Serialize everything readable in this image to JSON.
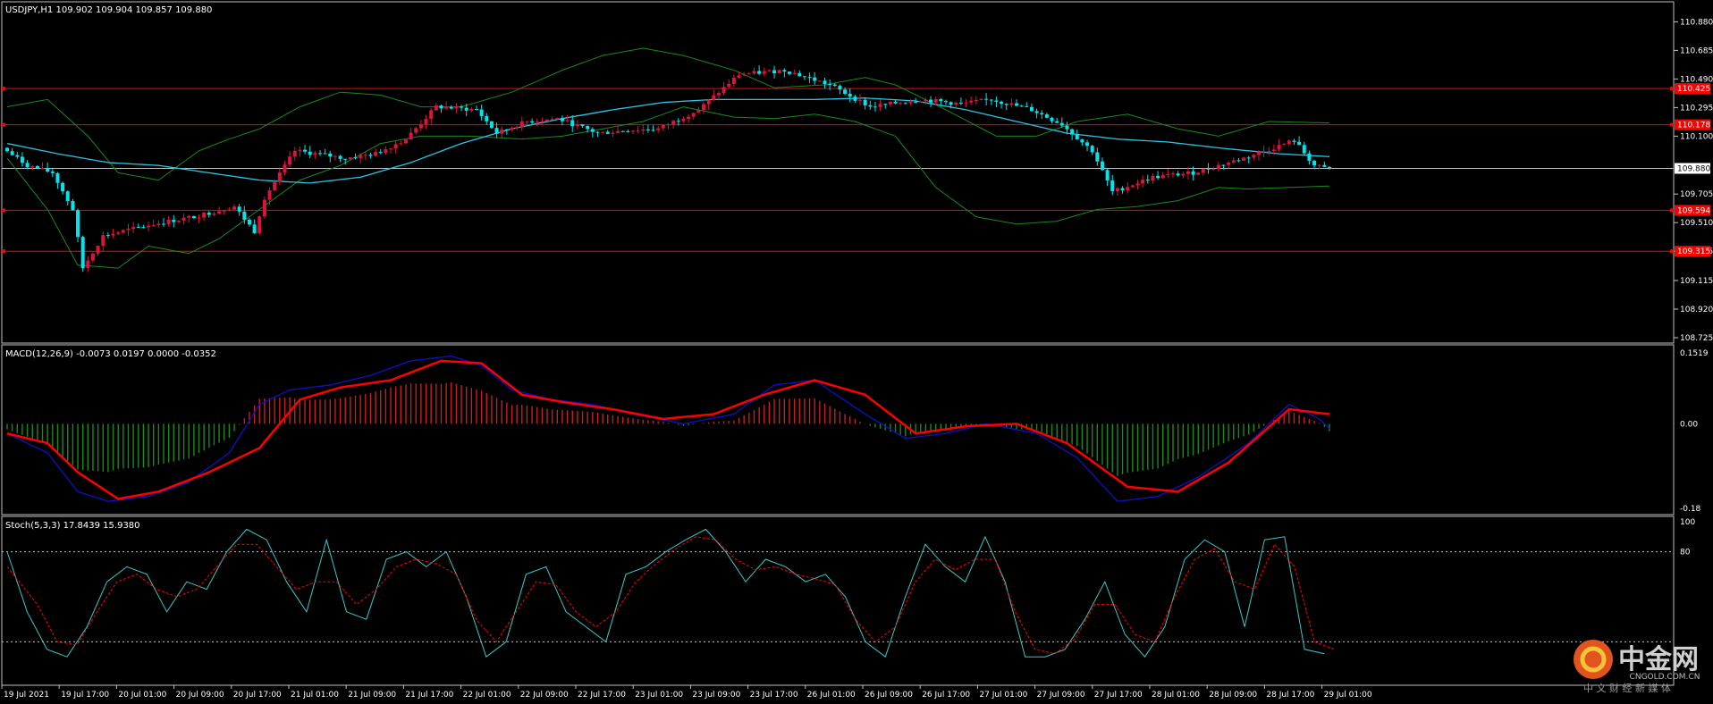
{
  "colors": {
    "background": "#000000",
    "frame": "#c0c0c0",
    "text": "#ffffff",
    "bull": "#dc143c",
    "bear": "#00e5ee",
    "ma": "#2ec4e0",
    "bands": "#1a8a1a",
    "level": "#ff0000",
    "macd_pos": "#c81e1e",
    "macd_neg": "#1a8a1a",
    "macd_main": "#1010c8",
    "macd_signal": "#ff0000",
    "stoch_main": "#3cc8c8",
    "stoch_signal": "#ff0000",
    "grid_dotted": "#c0c0c0"
  },
  "chart_data": [
    {
      "type": "candlestick",
      "title": "USDJPY,H1  109.902 109.904 109.857 109.880",
      "symbol": "USDJPY,H1",
      "ohlc_readout": [
        "109.902",
        "109.904",
        "109.857",
        "109.880"
      ],
      "ylim": [
        108.725,
        110.98
      ],
      "y_ticks": [
        "110.880",
        "110.685",
        "110.490",
        "110.295",
        "110.100",
        "109.705",
        "109.510",
        "109.315",
        "109.115",
        "108.920",
        "108.725"
      ],
      "current_price": "109.880",
      "levels": [
        {
          "label": "110.425",
          "value": 110.425
        },
        {
          "label": "110.178",
          "value": 110.178
        },
        {
          "label": "109.594",
          "value": 109.594
        },
        {
          "label": "109.315",
          "value": 109.315
        }
      ],
      "price_path": [
        [
          0,
          110.02
        ],
        [
          5,
          109.9
        ],
        [
          10,
          109.85
        ],
        [
          14,
          109.6
        ],
        [
          16,
          109.2
        ],
        [
          20,
          109.42
        ],
        [
          30,
          109.5
        ],
        [
          38,
          109.55
        ],
        [
          46,
          109.62
        ],
        [
          50,
          109.45
        ],
        [
          52,
          109.68
        ],
        [
          58,
          110.0
        ],
        [
          68,
          109.95
        ],
        [
          74,
          109.98
        ],
        [
          80,
          110.08
        ],
        [
          86,
          110.3
        ],
        [
          94,
          110.28
        ],
        [
          98,
          110.12
        ],
        [
          104,
          110.2
        ],
        [
          110,
          110.22
        ],
        [
          118,
          110.12
        ],
        [
          124,
          110.14
        ],
        [
          130,
          110.15
        ],
        [
          138,
          110.28
        ],
        [
          146,
          110.52
        ],
        [
          155,
          110.55
        ],
        [
          164,
          110.45
        ],
        [
          172,
          110.3
        ],
        [
          182,
          110.35
        ],
        [
          190,
          110.32
        ],
        [
          196,
          110.35
        ],
        [
          204,
          110.28
        ],
        [
          210,
          110.18
        ],
        [
          216,
          110.0
        ],
        [
          220,
          109.72
        ],
        [
          228,
          109.82
        ],
        [
          236,
          109.85
        ],
        [
          246,
          109.95
        ],
        [
          256,
          110.07
        ],
        [
          260,
          109.9
        ],
        [
          262,
          109.88
        ]
      ],
      "bb_upper": [
        [
          0,
          110.3
        ],
        [
          8,
          110.35
        ],
        [
          16,
          110.1
        ],
        [
          22,
          109.85
        ],
        [
          30,
          109.8
        ],
        [
          38,
          110.0
        ],
        [
          44,
          110.08
        ],
        [
          50,
          110.15
        ],
        [
          58,
          110.3
        ],
        [
          66,
          110.4
        ],
        [
          74,
          110.38
        ],
        [
          82,
          110.3
        ],
        [
          90,
          110.3
        ],
        [
          100,
          110.4
        ],
        [
          110,
          110.55
        ],
        [
          118,
          110.65
        ],
        [
          126,
          110.7
        ],
        [
          134,
          110.65
        ],
        [
          144,
          110.55
        ],
        [
          152,
          110.43
        ],
        [
          162,
          110.45
        ],
        [
          170,
          110.5
        ],
        [
          176,
          110.45
        ],
        [
          186,
          110.28
        ],
        [
          196,
          110.1
        ],
        [
          204,
          110.1
        ],
        [
          212,
          110.2
        ],
        [
          222,
          110.25
        ],
        [
          232,
          110.15
        ],
        [
          240,
          110.1
        ],
        [
          250,
          110.2
        ],
        [
          262,
          110.19
        ]
      ],
      "bb_lower": [
        [
          0,
          109.95
        ],
        [
          8,
          109.6
        ],
        [
          14,
          109.22
        ],
        [
          22,
          109.2
        ],
        [
          28,
          109.35
        ],
        [
          36,
          109.3
        ],
        [
          42,
          109.4
        ],
        [
          50,
          109.6
        ],
        [
          58,
          109.8
        ],
        [
          66,
          109.9
        ],
        [
          74,
          110.05
        ],
        [
          82,
          110.1
        ],
        [
          92,
          110.1
        ],
        [
          102,
          110.08
        ],
        [
          110,
          110.1
        ],
        [
          118,
          110.15
        ],
        [
          126,
          110.2
        ],
        [
          134,
          110.3
        ],
        [
          144,
          110.23
        ],
        [
          152,
          110.22
        ],
        [
          160,
          110.25
        ],
        [
          168,
          110.2
        ],
        [
          176,
          110.1
        ],
        [
          184,
          109.75
        ],
        [
          192,
          109.55
        ],
        [
          200,
          109.5
        ],
        [
          208,
          109.52
        ],
        [
          216,
          109.6
        ],
        [
          224,
          109.62
        ],
        [
          232,
          109.66
        ],
        [
          240,
          109.75
        ],
        [
          246,
          109.74
        ],
        [
          262,
          109.76
        ]
      ],
      "ma": [
        [
          0,
          110.05
        ],
        [
          10,
          109.98
        ],
        [
          20,
          109.92
        ],
        [
          30,
          109.9
        ],
        [
          40,
          109.85
        ],
        [
          50,
          109.8
        ],
        [
          60,
          109.78
        ],
        [
          70,
          109.82
        ],
        [
          80,
          109.92
        ],
        [
          90,
          110.05
        ],
        [
          100,
          110.15
        ],
        [
          110,
          110.22
        ],
        [
          120,
          110.28
        ],
        [
          130,
          110.33
        ],
        [
          140,
          110.35
        ],
        [
          150,
          110.35
        ],
        [
          160,
          110.35
        ],
        [
          170,
          110.36
        ],
        [
          180,
          110.34
        ],
        [
          190,
          110.28
        ],
        [
          200,
          110.2
        ],
        [
          210,
          110.12
        ],
        [
          220,
          110.08
        ],
        [
          230,
          110.06
        ],
        [
          240,
          110.02
        ],
        [
          252,
          109.98
        ],
        [
          262,
          109.96
        ]
      ],
      "x_ticks": [
        "19 Jul 2021",
        "19 Jul 17:00",
        "20 Jul 01:00",
        "20 Jul 09:00",
        "20 Jul 17:00",
        "21 Jul 01:00",
        "21 Jul 09:00",
        "21 Jul 17:00",
        "22 Jul 01:00",
        "22 Jul 09:00",
        "22 Jul 17:00",
        "23 Jul 01:00",
        "23 Jul 09:00",
        "23 Jul 17:00",
        "26 Jul 01:00",
        "26 Jul 09:00",
        "26 Jul 17:00",
        "27 Jul 01:00",
        "27 Jul 09:00",
        "27 Jul 17:00",
        "28 Jul 01:00",
        "28 Jul 09:00",
        "28 Jul 17:00",
        "29 Jul 01:00"
      ],
      "bars": 263
    },
    {
      "type": "histogram+line",
      "title": "MACD(12,26,9) -0.0073 0.0197 0.0000 -0.0352",
      "ylim": [
        -0.18,
        0.1519
      ],
      "y_ticks": [
        "0.1519",
        "0.00",
        "-0.18"
      ],
      "macd": [
        [
          0,
          -0.02
        ],
        [
          8,
          -0.06
        ],
        [
          14,
          -0.14
        ],
        [
          20,
          -0.16
        ],
        [
          28,
          -0.15
        ],
        [
          36,
          -0.12
        ],
        [
          44,
          -0.06
        ],
        [
          50,
          0.04
        ],
        [
          56,
          0.07
        ],
        [
          64,
          0.08
        ],
        [
          72,
          0.1
        ],
        [
          80,
          0.13
        ],
        [
          88,
          0.14
        ],
        [
          94,
          0.12
        ],
        [
          100,
          0.07
        ],
        [
          108,
          0.05
        ],
        [
          116,
          0.04
        ],
        [
          124,
          0.02
        ],
        [
          134,
          0.0
        ],
        [
          144,
          0.02
        ],
        [
          152,
          0.08
        ],
        [
          160,
          0.09
        ],
        [
          170,
          0.02
        ],
        [
          178,
          -0.03
        ],
        [
          186,
          -0.02
        ],
        [
          194,
          0.0
        ],
        [
          204,
          -0.02
        ],
        [
          212,
          -0.07
        ],
        [
          220,
          -0.16
        ],
        [
          228,
          -0.15
        ],
        [
          236,
          -0.11
        ],
        [
          246,
          -0.04
        ],
        [
          254,
          0.04
        ],
        [
          260,
          0.01
        ],
        [
          262,
          -0.01
        ]
      ],
      "signal": [
        [
          0,
          -0.02
        ],
        [
          8,
          -0.04
        ],
        [
          14,
          -0.1
        ],
        [
          22,
          -0.155
        ],
        [
          30,
          -0.14
        ],
        [
          40,
          -0.1
        ],
        [
          50,
          -0.05
        ],
        [
          58,
          0.05
        ],
        [
          66,
          0.075
        ],
        [
          76,
          0.09
        ],
        [
          86,
          0.13
        ],
        [
          94,
          0.125
        ],
        [
          102,
          0.06
        ],
        [
          110,
          0.045
        ],
        [
          120,
          0.03
        ],
        [
          130,
          0.01
        ],
        [
          140,
          0.02
        ],
        [
          150,
          0.06
        ],
        [
          160,
          0.09
        ],
        [
          170,
          0.06
        ],
        [
          180,
          -0.02
        ],
        [
          190,
          -0.005
        ],
        [
          200,
          0.0
        ],
        [
          210,
          -0.04
        ],
        [
          222,
          -0.13
        ],
        [
          232,
          -0.14
        ],
        [
          242,
          -0.08
        ],
        [
          254,
          0.03
        ],
        [
          262,
          0.02
        ]
      ]
    },
    {
      "type": "line",
      "title": "Stoch(5,3,3) 17.8439 15.9380",
      "ylim": [
        0,
        100
      ],
      "y_ticks": [
        "100",
        "80"
      ],
      "levels": [
        80,
        20
      ],
      "main": [
        [
          0,
          80
        ],
        [
          4,
          40
        ],
        [
          8,
          15
        ],
        [
          12,
          10
        ],
        [
          16,
          30
        ],
        [
          20,
          60
        ],
        [
          24,
          70
        ],
        [
          28,
          65
        ],
        [
          32,
          40
        ],
        [
          36,
          60
        ],
        [
          40,
          55
        ],
        [
          44,
          80
        ],
        [
          48,
          95
        ],
        [
          52,
          88
        ],
        [
          56,
          60
        ],
        [
          60,
          40
        ],
        [
          64,
          88
        ],
        [
          68,
          40
        ],
        [
          72,
          35
        ],
        [
          76,
          75
        ],
        [
          80,
          80
        ],
        [
          84,
          70
        ],
        [
          88,
          80
        ],
        [
          92,
          50
        ],
        [
          96,
          10
        ],
        [
          100,
          20
        ],
        [
          104,
          65
        ],
        [
          108,
          70
        ],
        [
          112,
          40
        ],
        [
          116,
          30
        ],
        [
          120,
          20
        ],
        [
          124,
          65
        ],
        [
          128,
          70
        ],
        [
          132,
          80
        ],
        [
          136,
          88
        ],
        [
          140,
          95
        ],
        [
          144,
          80
        ],
        [
          148,
          60
        ],
        [
          152,
          75
        ],
        [
          156,
          70
        ],
        [
          160,
          60
        ],
        [
          164,
          65
        ],
        [
          168,
          50
        ],
        [
          172,
          20
        ],
        [
          176,
          10
        ],
        [
          180,
          50
        ],
        [
          184,
          85
        ],
        [
          188,
          70
        ],
        [
          192,
          60
        ],
        [
          196,
          90
        ],
        [
          200,
          60
        ],
        [
          204,
          10
        ],
        [
          208,
          10
        ],
        [
          212,
          15
        ],
        [
          216,
          35
        ],
        [
          220,
          60
        ],
        [
          224,
          25
        ],
        [
          228,
          10
        ],
        [
          232,
          30
        ],
        [
          236,
          75
        ],
        [
          240,
          88
        ],
        [
          244,
          80
        ],
        [
          248,
          30
        ],
        [
          252,
          88
        ],
        [
          256,
          90
        ],
        [
          260,
          15
        ],
        [
          264,
          12
        ]
      ],
      "signal": [
        [
          0,
          70
        ],
        [
          6,
          45
        ],
        [
          10,
          20
        ],
        [
          14,
          18
        ],
        [
          18,
          40
        ],
        [
          22,
          60
        ],
        [
          26,
          65
        ],
        [
          30,
          55
        ],
        [
          34,
          50
        ],
        [
          38,
          55
        ],
        [
          42,
          70
        ],
        [
          46,
          85
        ],
        [
          50,
          85
        ],
        [
          54,
          70
        ],
        [
          58,
          55
        ],
        [
          62,
          60
        ],
        [
          66,
          60
        ],
        [
          70,
          45
        ],
        [
          74,
          55
        ],
        [
          78,
          70
        ],
        [
          82,
          75
        ],
        [
          86,
          72
        ],
        [
          90,
          65
        ],
        [
          94,
          35
        ],
        [
          98,
          20
        ],
        [
          102,
          40
        ],
        [
          106,
          60
        ],
        [
          110,
          58
        ],
        [
          114,
          40
        ],
        [
          118,
          30
        ],
        [
          122,
          40
        ],
        [
          126,
          60
        ],
        [
          130,
          72
        ],
        [
          134,
          82
        ],
        [
          138,
          90
        ],
        [
          142,
          88
        ],
        [
          146,
          75
        ],
        [
          150,
          68
        ],
        [
          154,
          70
        ],
        [
          158,
          65
        ],
        [
          162,
          62
        ],
        [
          166,
          58
        ],
        [
          170,
          35
        ],
        [
          174,
          20
        ],
        [
          178,
          30
        ],
        [
          182,
          60
        ],
        [
          186,
          75
        ],
        [
          190,
          68
        ],
        [
          194,
          75
        ],
        [
          198,
          75
        ],
        [
          202,
          40
        ],
        [
          206,
          15
        ],
        [
          210,
          12
        ],
        [
          214,
          22
        ],
        [
          218,
          45
        ],
        [
          222,
          45
        ],
        [
          226,
          25
        ],
        [
          230,
          20
        ],
        [
          234,
          50
        ],
        [
          238,
          75
        ],
        [
          242,
          82
        ],
        [
          246,
          60
        ],
        [
          250,
          55
        ],
        [
          254,
          85
        ],
        [
          258,
          70
        ],
        [
          262,
          20
        ],
        [
          266,
          15
        ]
      ]
    }
  ],
  "watermark": {
    "name": "中金网",
    "url": "CNGOLD.COM.CN",
    "tagline": "中 文 财 经 新 媒 体"
  }
}
